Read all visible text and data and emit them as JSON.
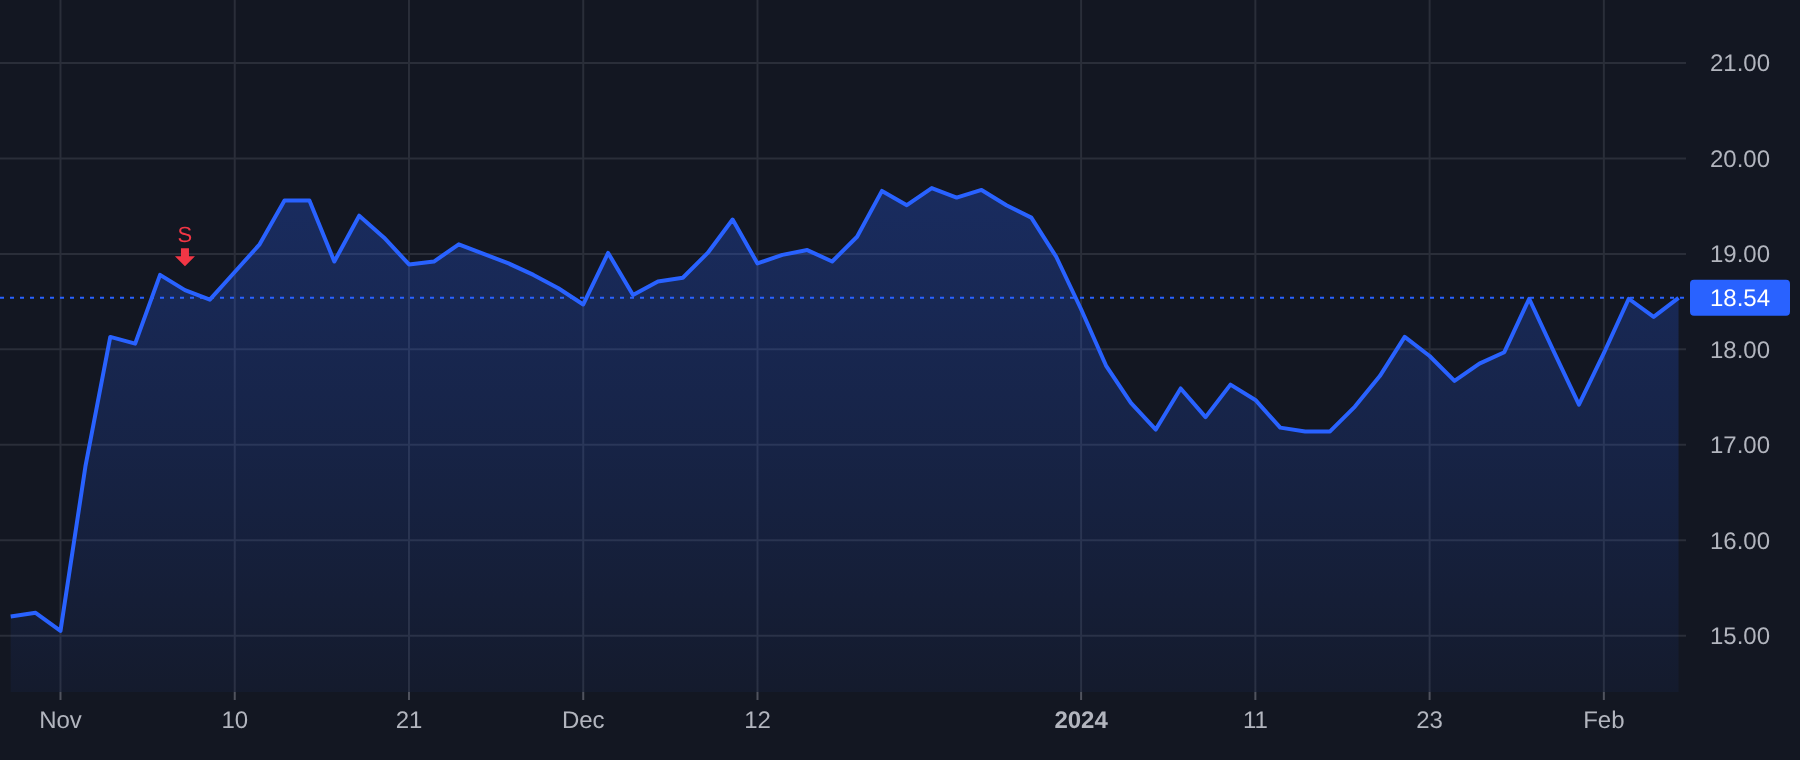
{
  "chart_data": {
    "type": "area",
    "categories": [
      null,
      null,
      "Nov",
      null,
      null,
      null,
      null,
      null,
      null,
      "10",
      null,
      null,
      null,
      null,
      null,
      null,
      "21",
      null,
      null,
      null,
      null,
      null,
      null,
      "Dec",
      null,
      null,
      null,
      null,
      null,
      null,
      "12",
      null,
      null,
      null,
      null,
      null,
      null,
      null,
      null,
      null,
      null,
      null,
      null,
      "2024",
      null,
      null,
      null,
      null,
      null,
      null,
      "11",
      null,
      null,
      null,
      null,
      null,
      null,
      "23",
      null,
      null,
      null,
      null,
      null,
      null,
      "Feb",
      null,
      null,
      null
    ],
    "series": [
      {
        "color": "#2962ff",
        "values": [
          15.2,
          15.24,
          15.05,
          16.77,
          18.13,
          18.06,
          18.78,
          18.62,
          18.52,
          18.81,
          19.1,
          19.56,
          19.56,
          18.92,
          19.4,
          19.17,
          18.89,
          18.92,
          19.1,
          19.0,
          18.9,
          18.78,
          18.64,
          18.47,
          19.01,
          18.57,
          18.71,
          18.75,
          19.01,
          19.36,
          18.9,
          18.99,
          19.04,
          18.92,
          19.18,
          19.66,
          19.51,
          19.69,
          19.59,
          19.67,
          19.51,
          19.38,
          18.97,
          18.42,
          17.83,
          17.44,
          17.16,
          17.59,
          17.29,
          17.63,
          17.47,
          17.18,
          17.14,
          17.14,
          17.4,
          17.72,
          18.13,
          17.93,
          17.67,
          17.85,
          17.97,
          18.53,
          17.97,
          17.42,
          17.96,
          18.53,
          18.34,
          18.54
        ]
      }
    ],
    "ylim": [
      14.41,
      21.66
    ],
    "yticks": [
      {
        "value": 15,
        "label": "15.00"
      },
      {
        "value": 16,
        "label": "16.00"
      },
      {
        "value": 17,
        "label": "17.00"
      },
      {
        "value": 18,
        "label": "18.00"
      },
      {
        "value": 19,
        "label": "19.00"
      },
      {
        "value": 20,
        "label": "20.00"
      },
      {
        "value": 21,
        "label": "21.00"
      }
    ],
    "grid": true,
    "marker": "none",
    "line_style": "solid",
    "ref_lines": [
      {
        "axis": "y",
        "value": 18.54,
        "label": "18.54",
        "color": "#2962ff",
        "line_style": "dotted"
      }
    ],
    "annotations": [
      {
        "text": "S",
        "y": 18.62
      }
    ]
  }
}
